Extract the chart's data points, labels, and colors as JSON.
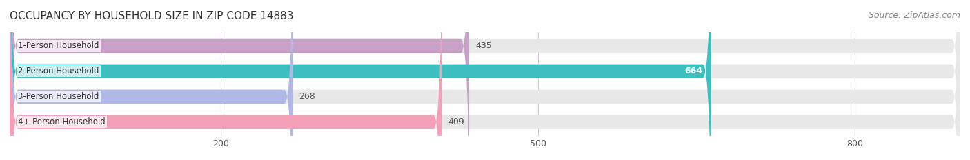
{
  "title": "OCCUPANCY BY HOUSEHOLD SIZE IN ZIP CODE 14883",
  "source": "Source: ZipAtlas.com",
  "categories": [
    "1-Person Household",
    "2-Person Household",
    "3-Person Household",
    "4+ Person Household"
  ],
  "values": [
    435,
    664,
    268,
    409
  ],
  "bar_colors": [
    "#c9a0c8",
    "#3dbfbf",
    "#b0b8e8",
    "#f4a0b8"
  ],
  "bar_bg_color": "#e8e8e8",
  "label_colors": [
    "#555555",
    "#ffffff",
    "#555555",
    "#555555"
  ],
  "xlim": [
    0,
    900
  ],
  "xticks": [
    200,
    500,
    800
  ],
  "background_color": "#ffffff",
  "title_fontsize": 11,
  "source_fontsize": 9,
  "bar_label_fontsize": 9,
  "category_fontsize": 8.5,
  "bar_height": 0.55,
  "figsize": [
    14.06,
    2.33
  ],
  "dpi": 100
}
